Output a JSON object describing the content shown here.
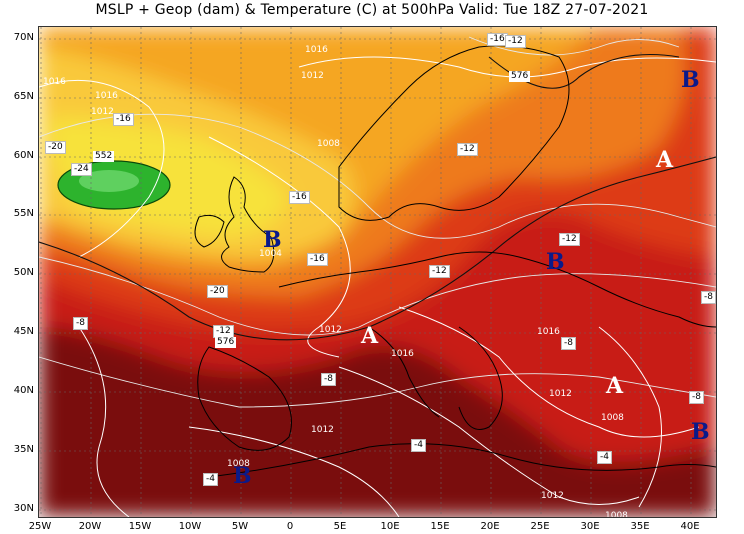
{
  "title": "MSLP + Geop (dam) & Temperature (C) at 500hPa  Valid: Tue 18Z 27-07-2021",
  "lat_labels": [
    "70N",
    "65N",
    "60N",
    "55N",
    "50N",
    "45N",
    "40N",
    "35N",
    "30N"
  ],
  "lon_labels": [
    "25W",
    "20W",
    "15W",
    "10W",
    "5W",
    "0",
    "5E",
    "10E",
    "15E",
    "20E",
    "25E",
    "30E",
    "35E",
    "40E"
  ],
  "pressure_systems": [
    {
      "letter": "B",
      "type": "low"
    },
    {
      "letter": "A",
      "type": "high"
    },
    {
      "letter": "B",
      "type": "low"
    },
    {
      "letter": "B",
      "type": "low"
    },
    {
      "letter": "A",
      "type": "high"
    },
    {
      "letter": "A",
      "type": "high"
    },
    {
      "letter": "B",
      "type": "low"
    },
    {
      "letter": "B",
      "type": "low"
    }
  ],
  "temperature_labels": [
    "-16",
    "-16",
    "-20",
    "-24",
    "-16",
    "-16",
    "-12",
    "-12",
    "-12",
    "-20",
    "-12",
    "-8",
    "-8",
    "-8",
    "-4",
    "-8",
    "-4",
    "-4",
    "-8",
    "-12"
  ],
  "mslp_labels": [
    "1016",
    "1012",
    "1008",
    "1016",
    "1012",
    "1016",
    "1004",
    "1012",
    "1016",
    "1016",
    "1012",
    "1008",
    "1012",
    "1008",
    "1012",
    "1008"
  ],
  "geopotential_labels": [
    "552",
    "576",
    "576"
  ],
  "colors": {
    "deep_red": "#7a0f0f",
    "red": "#c81e14",
    "orange": "#ee7a1a",
    "yellow": "#f7e23a",
    "green": "#2db32d",
    "light_green": "#9be060",
    "land_line": "#000000",
    "isotherm": "#dddddd",
    "isobar": "#ffffff"
  }
}
